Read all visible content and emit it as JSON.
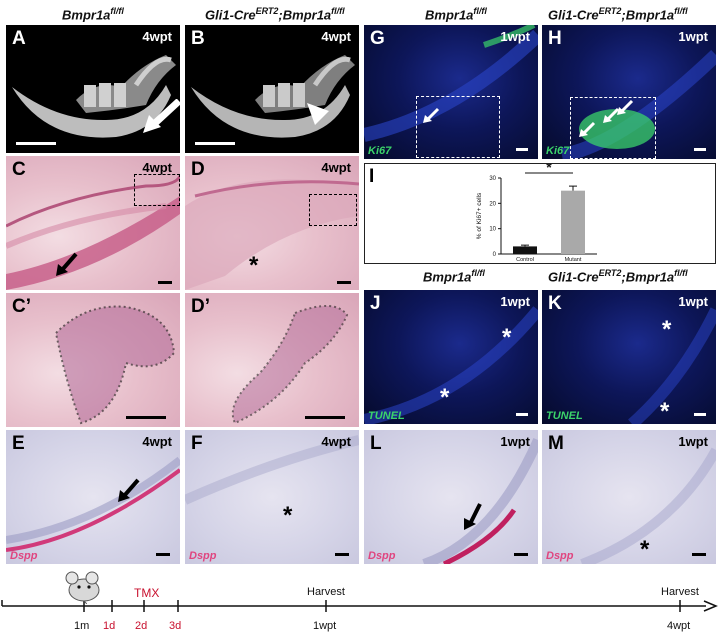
{
  "headers": {
    "ctl_left": "Bmpr1a",
    "ctl_left_sup": "fl/fl",
    "mut_left_a": "Gli1-Cre",
    "mut_left_sup1": "ERT2",
    "mut_left_b": ";Bmpr1a",
    "mut_left_sup2": "fl/fl",
    "ctl_right_top": "Bmpr1a",
    "ctl_right_top_sup": "fl/fl",
    "mut_right_top_a": "Gli1-Cre",
    "mut_right_top_sup1": "ERT2",
    "mut_right_top_b": ";Bmpr1a",
    "mut_right_top_sup2": "fl/fl",
    "ctl_right_mid": "Bmpr1a",
    "ctl_right_mid_sup": "fl/fl",
    "mut_right_mid_a": "Gli1-Cre",
    "mut_right_mid_sup1": "ERT2",
    "mut_right_mid_b": ";Bmpr1a",
    "mut_right_mid_sup2": "fl/fl"
  },
  "panels": {
    "A": {
      "letter": "A",
      "time": "4wpt"
    },
    "B": {
      "letter": "B",
      "time": "4wpt"
    },
    "C": {
      "letter": "C",
      "time": "4wpt"
    },
    "D": {
      "letter": "D",
      "time": "4wpt"
    },
    "C2": {
      "letter": "C’"
    },
    "D2": {
      "letter": "D’"
    },
    "E": {
      "letter": "E",
      "time": "4wpt",
      "stain": "Dspp"
    },
    "F": {
      "letter": "F",
      "time": "4wpt",
      "stain": "Dspp"
    },
    "G": {
      "letter": "G",
      "time": "1wpt",
      "stain": "Ki67"
    },
    "H": {
      "letter": "H",
      "time": "1wpt",
      "stain": "Ki67"
    },
    "I": {
      "letter": "I"
    },
    "J": {
      "letter": "J",
      "time": "1wpt",
      "stain": "TUNEL"
    },
    "K": {
      "letter": "K",
      "time": "1wpt",
      "stain": "TUNEL"
    },
    "L": {
      "letter": "L",
      "time": "1wpt",
      "stain": "Dspp"
    },
    "M": {
      "letter": "M",
      "time": "1wpt",
      "stain": "Dspp"
    }
  },
  "marks": {
    "star": "*"
  },
  "chart_data": {
    "type": "bar",
    "categories": [
      "Control",
      "Mutant"
    ],
    "values": [
      3,
      25
    ],
    "errors": [
      0.5,
      1.8
    ],
    "ylabel": "% of Ki67+ cells",
    "ylim": [
      0,
      30
    ],
    "yticks": [
      0,
      10,
      20,
      30
    ],
    "significance": "*",
    "colors": [
      "#111111",
      "#a9a9a9"
    ]
  },
  "timeline": {
    "labels": [
      {
        "text": "1m",
        "color": "#111111"
      },
      {
        "text": "1d",
        "color": "#c8102e"
      },
      {
        "text": "2d",
        "color": "#c8102e"
      },
      {
        "text": "3d",
        "color": "#c8102e"
      },
      {
        "text": "1wpt",
        "color": "#111111"
      },
      {
        "text": "4wpt",
        "color": "#111111"
      }
    ],
    "tmx": "TMX",
    "harvest_1": "Harvest",
    "harvest_2": "Harvest"
  }
}
